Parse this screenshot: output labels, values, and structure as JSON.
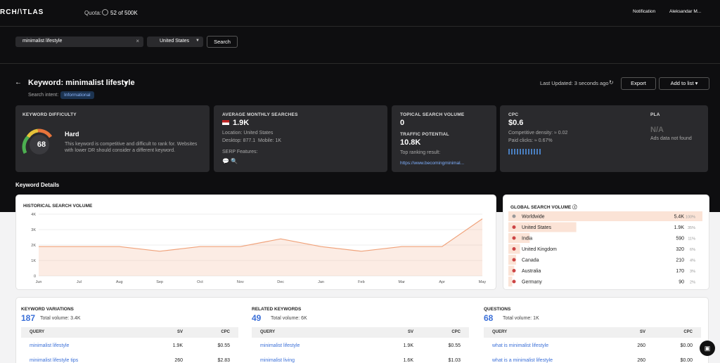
{
  "header": {
    "logo": "RCH/\\TLAS",
    "quota_label": "Quota:",
    "quota_value": "52 of 500K",
    "notification": "Notification",
    "user": "Aleksandar M..."
  },
  "search": {
    "query": "minimalist lifestyle",
    "country": "United States",
    "button": "Search"
  },
  "keyword": {
    "title": "Keyword: minimalist lifestyle",
    "intent_label": "Search intent:",
    "intent": "Informational",
    "last_updated": "Last Updated: 3 seconds ago",
    "export": "Export",
    "add_to_list": "Add to list"
  },
  "cards": {
    "difficulty": {
      "title": "KEYWORD DIFFICULTY",
      "value": "68",
      "level": "Hard",
      "description": "This keyword is competitive and difficult to rank for. Websites with lower DR should consider a different keyword."
    },
    "monthly": {
      "title": "AVERAGE MONTHLY SEARCHES",
      "value": "1.9K",
      "location": "Location: United States",
      "desktop": "Desktop: 877.1",
      "mobile": "Mobile: 1K",
      "serp": "SERP Features:"
    },
    "topical": {
      "title": "TOPICAL SEARCH VOLUME",
      "value": "0",
      "traffic_title": "TRAFFIC POTENTIAL",
      "traffic_value": "10.8K",
      "top_result": "Top ranking result:",
      "url": "https://www.becomingminimal..."
    },
    "cpc": {
      "title": "CPC",
      "value": "$0.6",
      "density": "Competitive density: ≈ 0.02",
      "paid": "Paid clicks: ≈ 0.67%"
    },
    "pla": {
      "title": "PLA",
      "value": "N/A",
      "note": "Ads data not found"
    }
  },
  "section_title": "Keyword Details",
  "historical": {
    "type": "line",
    "title": "HISTORICAL SEARCH VOLUME",
    "categories": [
      "Jun",
      "Jul",
      "Aug",
      "Sep",
      "Oct",
      "Nov",
      "Dec",
      "Jan",
      "Feb",
      "Mar",
      "Apr",
      "May"
    ],
    "values": [
      1900,
      1900,
      1900,
      1600,
      1900,
      1900,
      2400,
      1900,
      1600,
      1900,
      1900,
      3700
    ],
    "ylim": [
      0,
      4000
    ],
    "yticks": [
      0,
      {
        "value": 1000,
        "label": "1K"
      },
      {
        "value": 2000,
        "label": "2K"
      },
      {
        "value": 3000,
        "label": "3K"
      },
      {
        "value": 4000,
        "label": "4K"
      }
    ],
    "color": "#f0a27a",
    "grid": true
  },
  "global": {
    "title": "GLOBAL SEARCH VOLUME",
    "rows": [
      {
        "country": "Worldwide",
        "volume": "5.4K",
        "share": 100,
        "share_label": "100%"
      },
      {
        "country": "United States",
        "volume": "1.9K",
        "share": 35,
        "share_label": "35%"
      },
      {
        "country": "India",
        "volume": "590",
        "share": 11,
        "share_label": "11%"
      },
      {
        "country": "United Kingdom",
        "volume": "320",
        "share": 6,
        "share_label": "6%"
      },
      {
        "country": "Canada",
        "volume": "210",
        "share": 4,
        "share_label": "4%"
      },
      {
        "country": "Australia",
        "volume": "170",
        "share": 3,
        "share_label": "3%"
      },
      {
        "country": "Germany",
        "volume": "90",
        "share": 2,
        "share_label": "2%"
      }
    ]
  },
  "tables": [
    {
      "title": "KEYWORD VARIATIONS",
      "count": "187",
      "total": "Total volume: 3.4K",
      "columns": [
        "QUERY",
        "SV",
        "CPC"
      ],
      "rows": [
        [
          "minimalist lifestyle",
          "1.9K",
          "$0.55"
        ],
        [
          "minimalist lifestyle tips",
          "260",
          "$2.83"
        ]
      ]
    },
    {
      "title": "RELATED KEYWORDS",
      "count": "49",
      "total": "Total volume: 6K",
      "columns": [
        "QUERY",
        "SV",
        "CPC"
      ],
      "rows": [
        [
          "minimalist lifestyle",
          "1.9K",
          "$0.55"
        ],
        [
          "minimalist living",
          "1.6K",
          "$1.03"
        ]
      ]
    },
    {
      "title": "QUESTIONS",
      "count": "68",
      "total": "Total volume: 1K",
      "columns": [
        "QUERY",
        "SV",
        "CPC"
      ],
      "rows": [
        [
          "what is minimalist lifestyle",
          "260",
          "$0.00"
        ],
        [
          "what is a minimalist lifestyle",
          "260",
          "$0.00"
        ]
      ]
    }
  ]
}
